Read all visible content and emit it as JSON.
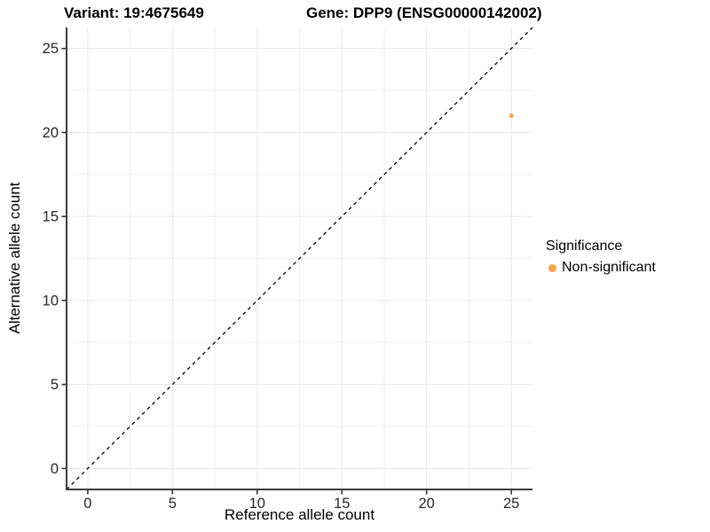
{
  "chart_data": {
    "type": "scatter",
    "title_left": "Variant: 19:4675649",
    "title_right": "Gene: DPP9 (ENSG00000142002)",
    "xlabel": "Reference allele count",
    "ylabel": "Alternative allele count",
    "xlim": [
      -1.25,
      26.25
    ],
    "ylim": [
      -1.25,
      26.25
    ],
    "xticks": [
      0,
      5,
      10,
      15,
      20,
      25
    ],
    "yticks": [
      0,
      5,
      10,
      15,
      20,
      25
    ],
    "x_minor_ticks": [
      2.5,
      7.5,
      12.5,
      17.5,
      22.5
    ],
    "y_minor_ticks": [
      2.5,
      7.5,
      12.5,
      17.5,
      22.5
    ],
    "grid": "major+minor",
    "series": [
      {
        "name": "Non-significant",
        "color": "#F9A242",
        "points": [
          {
            "x": 25,
            "y": 21
          }
        ]
      }
    ],
    "reference_line": {
      "kind": "identity",
      "slope": 1,
      "intercept": 0,
      "style": "dashed",
      "color": "#000000"
    },
    "legend": {
      "title": "Significance",
      "position": "right",
      "items": [
        {
          "label": "Non-significant",
          "color": "#F9A242"
        }
      ]
    },
    "colors": {
      "background": "#FFFFFF",
      "grid_major": "#E7E7E7",
      "grid_minor": "#F0F0F0",
      "axis_line": "#3C3C3C",
      "tick_mark": "#333333",
      "tick_label": "#262626",
      "point": "#F9A242"
    }
  }
}
